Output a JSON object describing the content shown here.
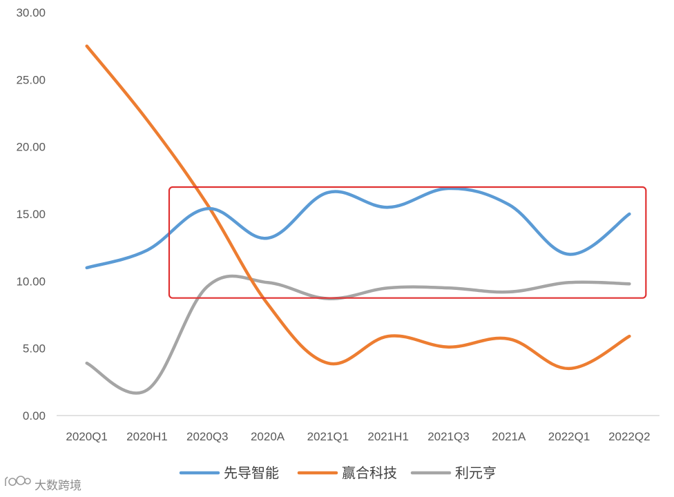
{
  "chart_data": {
    "type": "line",
    "categories": [
      "2020Q1",
      "2020H1",
      "2020Q3",
      "2020A",
      "2021Q1",
      "2021H1",
      "2021Q3",
      "2021A",
      "2022Q1",
      "2022Q2"
    ],
    "y_ticks": [
      "0.00",
      "5.00",
      "10.00",
      "15.00",
      "20.00",
      "25.00",
      "30.00"
    ],
    "ylim": [
      0,
      30
    ],
    "grid": false,
    "legend_position": "bottom",
    "series": [
      {
        "name": "先导智能",
        "color": "#5b9bd5",
        "values": [
          11.0,
          12.3,
          15.4,
          13.2,
          16.6,
          15.5,
          16.9,
          15.7,
          12.0,
          15.0
        ]
      },
      {
        "name": "赢合科技",
        "color": "#ed7d31",
        "values": [
          27.5,
          22.0,
          15.7,
          8.3,
          3.9,
          5.9,
          5.1,
          5.7,
          3.5,
          5.9
        ]
      },
      {
        "name": "利元亨",
        "color": "#a5a5a5",
        "values": [
          3.9,
          1.9,
          9.6,
          9.9,
          8.7,
          9.5,
          9.5,
          9.2,
          9.9,
          9.8
        ]
      }
    ],
    "annotation": {
      "type": "highlight-box",
      "color": "#e03131",
      "y_range": [
        8.8,
        16.9
      ],
      "x_range": [
        "2020H1",
        "2022Q2"
      ]
    }
  },
  "watermark": {
    "text": "大数跨境",
    "logo": "大数跨境"
  }
}
